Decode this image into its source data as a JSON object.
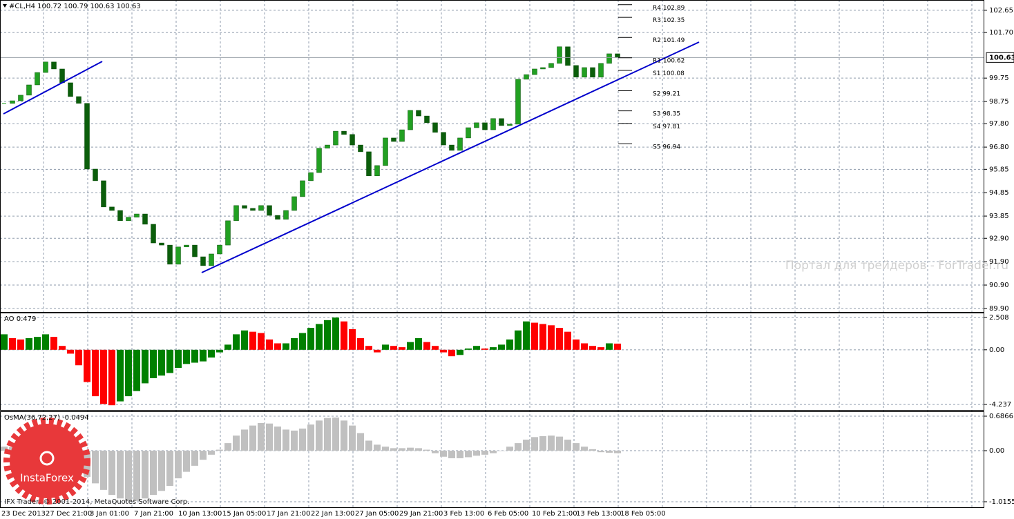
{
  "chart_data": [
    {
      "type": "candlestick",
      "title": "#CL,H4  100.72 100.79 100.63 100.63",
      "close": [
        98.67,
        98.78,
        99.02,
        99.46,
        99.99,
        100.44,
        100.14,
        99.55,
        98.96,
        98.67,
        95.86,
        95.36,
        94.24,
        94.09,
        93.65,
        93.8,
        93.94,
        93.5,
        92.7,
        92.61,
        91.79,
        92.53,
        92.61,
        92.11,
        91.73,
        92.23,
        92.61,
        93.65,
        94.3,
        94.18,
        94.09,
        94.3,
        93.88,
        93.71,
        94.09,
        94.68,
        95.36,
        95.71,
        96.75,
        96.89,
        97.48,
        97.34,
        96.89,
        96.6,
        95.57,
        96.01,
        97.19,
        97.04,
        97.54,
        98.37,
        98.13,
        97.84,
        97.43,
        96.89,
        96.66,
        97.19,
        97.63,
        97.84,
        97.54,
        98.02,
        97.72,
        97.78,
        99.7,
        99.9,
        100.14,
        100.2,
        100.38,
        101.09,
        100.29,
        99.79,
        100.2,
        99.79,
        100.38,
        100.79,
        100.63
      ],
      "up_color": "#22a022",
      "down_color": "#0b5e0b",
      "ylim": [
        89.75,
        103.09
      ],
      "yticks": [
        102.65,
        {
          "value": 101.7,
          "label": "101.70"
        },
        99.75,
        98.75,
        {
          "value": 97.8,
          "label": "97.80"
        },
        {
          "value": 96.8,
          "label": "96.80"
        },
        95.85,
        94.85,
        93.85,
        {
          "value": 92.9,
          "label": "92.90"
        },
        {
          "value": 91.9,
          "label": "91.90"
        },
        {
          "value": 90.9,
          "label": "90.90"
        },
        {
          "value": 89.9,
          "label": "89.90"
        }
      ],
      "grid": true,
      "last_price": 100.63,
      "pivots": [
        {
          "name": "R4",
          "value": 102.89
        },
        {
          "name": "R3",
          "value": 102.35
        },
        {
          "name": "R2",
          "value": 101.49
        },
        {
          "name": "R1",
          "value": 100.62
        },
        {
          "name": "S1",
          "value": 100.08
        },
        {
          "name": "S2",
          "value": 99.21
        },
        {
          "name": "S3",
          "value": 98.35
        },
        {
          "name": "S4",
          "value": 97.81
        },
        {
          "name": "S5",
          "value": 96.94
        }
      ],
      "xticklabels": [
        "23 Dec 2013",
        "27 Dec 21:00",
        "3 Jan 01:00",
        "7 Jan 21:00",
        "10 Jan 13:00",
        "15 Jan 05:00",
        "17 Jan 21:00",
        "22 Jan 13:00",
        "27 Jan 05:00",
        "29 Jan 21:00",
        "3 Feb 13:00",
        "6 Feb 05:00",
        "10 Feb 21:00",
        "13 Feb 13:00",
        "18 Feb 05:00"
      ]
    },
    {
      "type": "bar",
      "title": "AO 0.479",
      "values": [
        1.2,
        0.9,
        0.8,
        0.9,
        1.0,
        1.2,
        1.0,
        0.3,
        -0.3,
        -1.2,
        -2.5,
        -3.6,
        -4.2,
        -4.3,
        -4.0,
        -3.6,
        -3.2,
        -2.6,
        -2.2,
        -2.0,
        -1.8,
        -1.4,
        -1.1,
        -1.0,
        -0.9,
        -0.6,
        -0.2,
        0.4,
        1.2,
        1.5,
        1.4,
        1.3,
        0.8,
        0.5,
        0.5,
        0.9,
        1.3,
        1.7,
        2.0,
        2.3,
        2.5,
        2.2,
        1.6,
        0.9,
        0.3,
        -0.2,
        0.4,
        0.3,
        0.2,
        0.6,
        0.9,
        0.6,
        0.3,
        -0.2,
        -0.5,
        -0.4,
        0.1,
        0.3,
        0.1,
        0.2,
        0.4,
        0.8,
        1.5,
        2.2,
        2.1,
        2.0,
        1.9,
        1.7,
        1.4,
        0.8,
        0.5,
        0.3,
        0.2,
        0.5,
        0.479
      ],
      "up_color": "#008000",
      "down_color": "#ff0000",
      "ylim": [
        -4.665,
        2.88
      ],
      "yticks": [
        2.508,
        {
          "value": 0,
          "label": "0.00"
        },
        -4.237
      ],
      "grid": true
    },
    {
      "type": "bar",
      "title": "OsMA(36,72,27) -0.0494",
      "values": [
        0.08,
        0.07,
        0.06,
        0.06,
        0.07,
        0.06,
        0.0,
        -0.12,
        -0.25,
        -0.38,
        -0.52,
        -0.65,
        -0.78,
        -0.88,
        -0.95,
        -1.0,
        -1.0,
        -0.95,
        -0.88,
        -0.8,
        -0.7,
        -0.55,
        -0.42,
        -0.3,
        -0.18,
        -0.08,
        0.02,
        0.15,
        0.3,
        0.42,
        0.5,
        0.55,
        0.54,
        0.48,
        0.42,
        0.4,
        0.44,
        0.52,
        0.6,
        0.65,
        0.66,
        0.6,
        0.5,
        0.35,
        0.2,
        0.12,
        0.08,
        0.05,
        0.05,
        0.06,
        0.05,
        0.02,
        -0.05,
        -0.12,
        -0.15,
        -0.15,
        -0.13,
        -0.1,
        -0.08,
        -0.05,
        0.0,
        0.08,
        0.15,
        0.22,
        0.27,
        0.29,
        0.3,
        0.28,
        0.22,
        0.15,
        0.08,
        0.03,
        -0.03,
        -0.04,
        -0.0494
      ],
      "color": "#c0c0c0",
      "ylim": [
        -1.1253,
        0.7827
      ],
      "yticks": [
        0.6866,
        {
          "value": 0,
          "label": "0.00"
        },
        -1.0155
      ],
      "grid": true
    }
  ],
  "watermark": "Портал для трейдеров - ForTrader.ru",
  "copyright": "IFX Trader, © 2001-2014, MetaQuotes Software Corp.",
  "logo": "InstaForex"
}
